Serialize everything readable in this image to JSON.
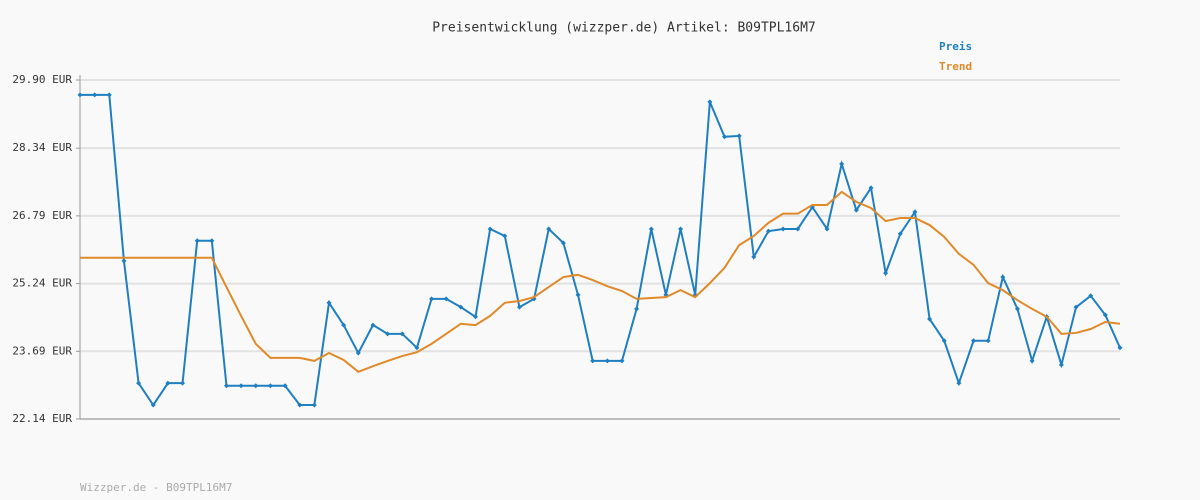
{
  "chart_data": {
    "type": "line",
    "title": "Preisentwicklung (wizzper.de) Artikel: B09TPL16M7",
    "series": [
      {
        "name": "Preis",
        "color": "#1f7fc0",
        "markers": true,
        "values": [
          29.56,
          29.56,
          29.56,
          25.76,
          22.96,
          22.46,
          22.96,
          22.96,
          26.22,
          26.22,
          22.9,
          22.9,
          22.9,
          22.9,
          22.9,
          22.46,
          22.46,
          24.8,
          24.29,
          23.65,
          24.29,
          24.09,
          24.09,
          23.77,
          24.89,
          24.89,
          24.7,
          24.48,
          26.49,
          26.33,
          24.7,
          24.89,
          26.49,
          26.17,
          24.98,
          23.47,
          23.47,
          23.47,
          24.66,
          26.49,
          24.98,
          26.49,
          24.98,
          29.4,
          28.6,
          28.62,
          25.85,
          26.44,
          26.49,
          26.49,
          26.99,
          26.49,
          27.98,
          26.92,
          27.43,
          25.48,
          26.38,
          26.88,
          24.43,
          23.93,
          22.96,
          23.93,
          23.93,
          25.39,
          24.66,
          23.47,
          24.48,
          23.38,
          24.7,
          24.96,
          24.52,
          23.77
        ]
      },
      {
        "name": "Trend",
        "color": "#e08a2a",
        "markers": false,
        "values": [
          25.83,
          25.83,
          25.83,
          25.83,
          25.83,
          25.83,
          25.83,
          25.83,
          25.83,
          25.83,
          25.16,
          24.5,
          23.86,
          23.54,
          23.54,
          23.54,
          23.47,
          23.65,
          23.49,
          23.22,
          23.35,
          23.47,
          23.58,
          23.67,
          23.86,
          24.09,
          24.32,
          24.29,
          24.5,
          24.8,
          24.84,
          24.93,
          25.16,
          25.39,
          25.44,
          25.32,
          25.18,
          25.07,
          24.89,
          24.91,
          24.93,
          25.09,
          24.93,
          25.25,
          25.6,
          26.12,
          26.33,
          26.63,
          26.84,
          26.84,
          27.04,
          27.04,
          27.34,
          27.11,
          26.97,
          26.67,
          26.74,
          26.74,
          26.58,
          26.31,
          25.92,
          25.67,
          25.25,
          25.09,
          24.86,
          24.66,
          24.48,
          24.09,
          24.11,
          24.2,
          24.36,
          24.32
        ]
      }
    ],
    "ylim": [
      22.14,
      29.9
    ],
    "yticks": [
      {
        "value": 22.14,
        "label": "22.14 EUR"
      },
      {
        "value": 23.69,
        "label": "23.69 EUR"
      },
      {
        "value": 25.24,
        "label": "25.24 EUR"
      },
      {
        "value": 26.79,
        "label": "26.79 EUR"
      },
      {
        "value": 28.34,
        "label": "28.34 EUR"
      },
      {
        "value": 29.9,
        "label": "29.90 EUR"
      }
    ],
    "grid": true
  },
  "footer": "Wizzper.de - B09TPL16M7"
}
